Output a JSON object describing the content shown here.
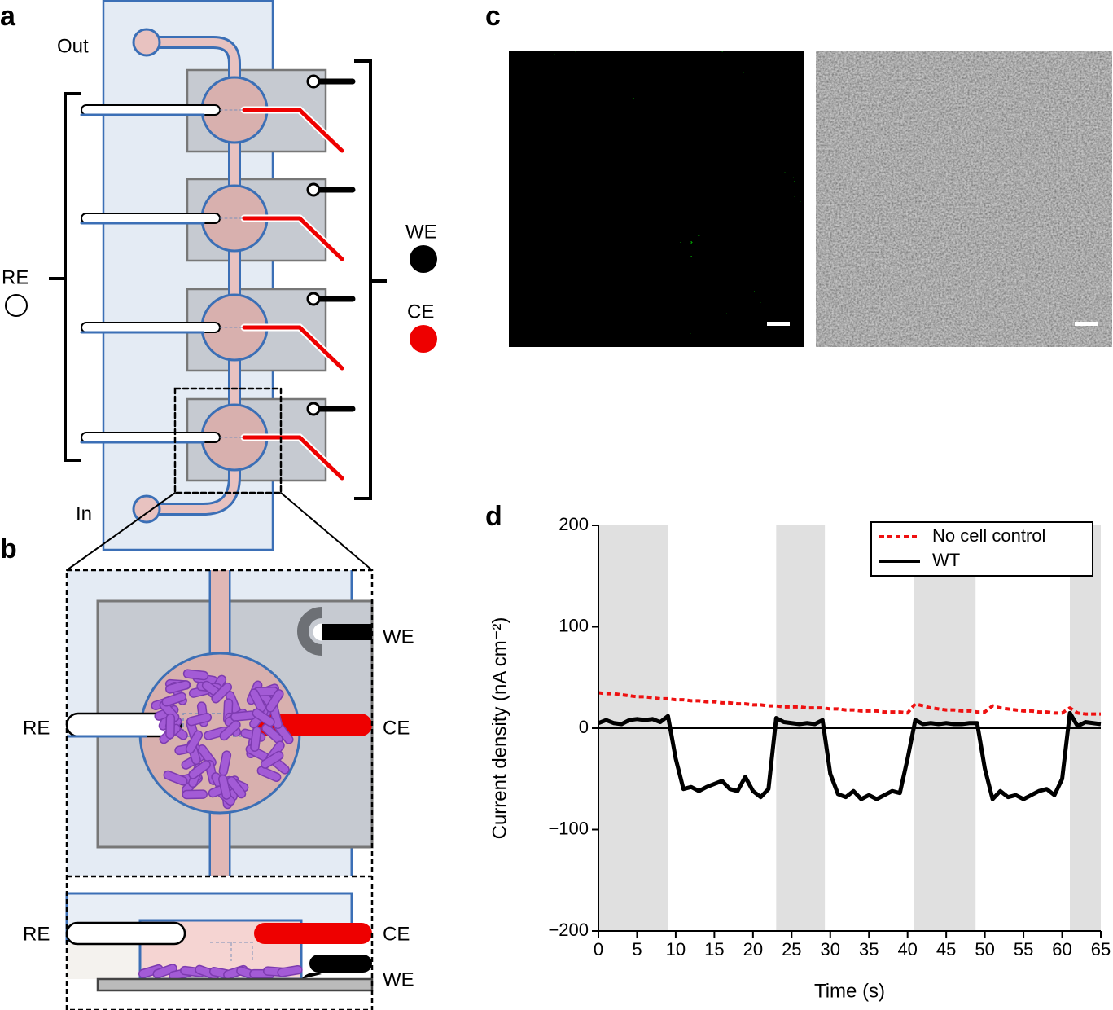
{
  "panel_labels": [
    "a",
    "b",
    "c",
    "d"
  ],
  "diagram_a": {
    "outlet": "Out",
    "inlet": "In",
    "reference": "RE",
    "working": "WE",
    "counter": "CE"
  },
  "diagram_b": {
    "top_left": "RE",
    "top_right_upper": "WE",
    "top_right_lower": "CE",
    "section_left": "RE",
    "section_right_upper": "CE",
    "section_right_lower": "WE"
  },
  "chart_data": {
    "type": "line",
    "xlabel": "Time (s)",
    "ylabel": "Current density (nA cm⁻²)",
    "xlim": [
      0,
      65
    ],
    "xticks": [
      0,
      5,
      10,
      15,
      20,
      25,
      30,
      35,
      40,
      45,
      50,
      55,
      60,
      65
    ],
    "ylim": [
      -200,
      200
    ],
    "yticks": [
      {
        "value": -200,
        "label": "−200"
      },
      {
        "value": -100,
        "label": "−100"
      },
      0,
      100,
      200
    ],
    "reference_line": 0,
    "shaded_spans": [
      [
        0,
        9
      ],
      [
        23,
        29.3
      ],
      [
        40.8,
        48.8
      ],
      [
        61,
        65
      ]
    ],
    "shade_color": "#e0e0e0",
    "legend": "upper right",
    "x": [
      0,
      1,
      2,
      3,
      4,
      5,
      6,
      7,
      8,
      9,
      10,
      11,
      12,
      13,
      14,
      15,
      16,
      17,
      18,
      19,
      20,
      21,
      22,
      23,
      24,
      25,
      26,
      27,
      28,
      29,
      30,
      31,
      32,
      33,
      34,
      35,
      36,
      37,
      38,
      39,
      40,
      41,
      42,
      43,
      44,
      45,
      46,
      47,
      48,
      49,
      50,
      51,
      52,
      53,
      54,
      55,
      56,
      57,
      58,
      59,
      60,
      61,
      62,
      63,
      64,
      65
    ],
    "series": [
      {
        "name": "No cell control",
        "color": "#ee1111",
        "dash": true,
        "values": [
          35,
          34,
          34,
          33,
          32,
          31,
          31,
          30,
          29,
          29,
          28,
          28,
          27,
          27,
          26,
          26,
          25,
          25,
          24,
          24,
          23,
          23,
          22,
          22,
          21,
          21,
          21,
          20,
          20,
          20,
          19,
          19,
          18,
          18,
          17,
          17,
          17,
          16,
          16,
          16,
          15,
          24,
          22,
          20,
          19,
          18,
          18,
          17,
          17,
          16,
          16,
          22,
          20,
          19,
          18,
          17,
          17,
          16,
          16,
          15,
          15,
          20,
          15,
          14,
          14,
          14
        ]
      },
      {
        "name": "WT",
        "color": "#000000",
        "dash": false,
        "values": [
          5,
          8,
          5,
          4,
          8,
          9,
          8,
          9,
          6,
          12,
          -30,
          -60,
          -58,
          -62,
          -58,
          -55,
          -52,
          -60,
          -62,
          -48,
          -62,
          -68,
          -60,
          10,
          6,
          5,
          4,
          5,
          4,
          8,
          -45,
          -65,
          -68,
          -62,
          -70,
          -66,
          -70,
          -66,
          -62,
          -64,
          -30,
          8,
          4,
          5,
          4,
          5,
          4,
          4,
          5,
          5,
          -40,
          -70,
          -62,
          -68,
          -66,
          -70,
          -66,
          -62,
          -60,
          -66,
          -50,
          15,
          2,
          6,
          5,
          4
        ]
      }
    ]
  }
}
